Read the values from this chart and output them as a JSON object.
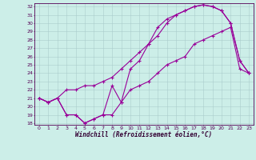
{
  "xlabel": "Windchill (Refroidissement éolien,°C)",
  "bg_color": "#cceee8",
  "grid_color": "#aacccc",
  "line_color": "#990099",
  "xlim": [
    -0.5,
    23.5
  ],
  "ylim": [
    17.8,
    32.4
  ],
  "xticks": [
    0,
    1,
    2,
    3,
    4,
    5,
    6,
    7,
    8,
    9,
    10,
    11,
    12,
    13,
    14,
    15,
    16,
    17,
    18,
    19,
    20,
    21,
    22,
    23
  ],
  "yticks": [
    18,
    19,
    20,
    21,
    22,
    23,
    24,
    25,
    26,
    27,
    28,
    29,
    30,
    31,
    32
  ],
  "line1_x": [
    0,
    1,
    2,
    3,
    4,
    5,
    6,
    7,
    8,
    9,
    10,
    11,
    12,
    13,
    14,
    15,
    16,
    17,
    18,
    19,
    20,
    21,
    22,
    23
  ],
  "line1_y": [
    21.0,
    20.5,
    21.0,
    19.0,
    19.0,
    18.0,
    18.5,
    19.0,
    19.0,
    20.5,
    24.5,
    25.5,
    27.5,
    29.5,
    30.5,
    31.0,
    31.5,
    32.0,
    32.2,
    32.0,
    31.5,
    30.0,
    25.5,
    24.0
  ],
  "line2_x": [
    0,
    1,
    2,
    3,
    4,
    5,
    6,
    7,
    8,
    9,
    10,
    11,
    12,
    13,
    14,
    15,
    16,
    17,
    18,
    19,
    20,
    21,
    22,
    23
  ],
  "line2_y": [
    21.0,
    20.5,
    21.0,
    22.0,
    22.0,
    22.5,
    22.5,
    23.0,
    23.5,
    24.5,
    25.5,
    26.5,
    27.5,
    28.5,
    30.0,
    31.0,
    31.5,
    32.0,
    32.2,
    32.0,
    31.5,
    30.0,
    25.5,
    24.0
  ],
  "line3_x": [
    0,
    1,
    2,
    3,
    4,
    5,
    6,
    7,
    8,
    9,
    10,
    11,
    12,
    13,
    14,
    15,
    16,
    17,
    18,
    19,
    20,
    21,
    22,
    23
  ],
  "line3_y": [
    21.0,
    20.5,
    21.0,
    19.0,
    19.0,
    18.0,
    18.5,
    19.0,
    22.5,
    20.5,
    22.0,
    22.5,
    23.0,
    24.0,
    25.0,
    25.5,
    26.0,
    27.5,
    28.0,
    28.5,
    29.0,
    29.5,
    24.5,
    24.0
  ]
}
